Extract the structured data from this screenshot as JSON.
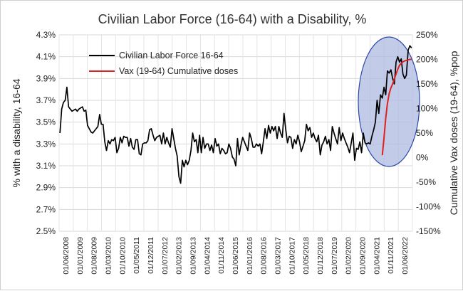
{
  "chart_data": {
    "type": "line",
    "title": "Civilian Labor Force (16-64) with a Disability, %",
    "ylabel_left": "% with a disability, 16-64",
    "ylabel_right": "Cumulative Vax doses (19-64), %pop",
    "y_left": {
      "min": 2.5,
      "max": 4.3,
      "step": 0.2,
      "ticks": [
        "4.3%",
        "4.1%",
        "3.9%",
        "3.7%",
        "3.5%",
        "3.3%",
        "3.1%",
        "2.9%",
        "2.7%",
        "2.5%"
      ]
    },
    "y_right": {
      "min": -150,
      "max": 250,
      "step": 50,
      "ticks": [
        "250%",
        "200%",
        "150%",
        "100%",
        "50%",
        "0%",
        "-50%",
        "-100%",
        "-150%"
      ]
    },
    "x_ticks": [
      "01/06/2008",
      "01/01/2009",
      "01/08/2009",
      "01/03/2010",
      "01/10/2010",
      "01/05/2011",
      "01/12/2011",
      "01/07/2012",
      "01/02/2013",
      "01/09/2013",
      "01/04/2014",
      "01/11/2014",
      "01/06/2015",
      "01/01/2016",
      "01/08/2016",
      "01/03/2017",
      "01/10/2017",
      "01/05/2018",
      "01/12/2018",
      "01/07/2019",
      "01/02/2020",
      "01/09/2020",
      "01/04/2021",
      "01/11/2021",
      "01/06/2022"
    ],
    "legend": [
      "Civilian Labor Force 16-64",
      "Vax (19-64) Cumulative doses"
    ],
    "colors": {
      "labor": "#000000",
      "vax": "#e02020",
      "ellipse_fill": "#aab8e0",
      "ellipse_stroke": "#2c49a8"
    },
    "series": [
      {
        "name": "Civilian Labor Force 16-64",
        "axis": "left",
        "start_month": "2008-06",
        "values": [
          3.4,
          3.62,
          3.68,
          3.7,
          3.82,
          3.64,
          3.62,
          3.6,
          3.61,
          3.62,
          3.6,
          3.62,
          3.63,
          3.64,
          3.6,
          3.61,
          3.47,
          3.44,
          3.41,
          3.4,
          3.42,
          3.44,
          3.46,
          3.57,
          3.48,
          3.48,
          3.32,
          3.24,
          3.33,
          3.3,
          3.34,
          3.33,
          3.36,
          3.22,
          3.26,
          3.36,
          3.31,
          3.37,
          3.36,
          3.36,
          3.28,
          3.35,
          3.27,
          3.25,
          3.34,
          3.34,
          3.21,
          3.2,
          3.3,
          3.31,
          3.31,
          3.33,
          3.43,
          3.44,
          3.38,
          3.33,
          3.36,
          3.37,
          3.38,
          3.3,
          3.4,
          3.3,
          3.36,
          3.31,
          3.27,
          3.44,
          3.35,
          3.26,
          3.19,
          3.0,
          2.94,
          3.15,
          3.09,
          3.15,
          3.11,
          3.15,
          3.24,
          3.4,
          3.32,
          3.34,
          3.22,
          3.38,
          3.22,
          3.36,
          3.26,
          3.3,
          3.3,
          3.24,
          3.29,
          3.22,
          3.35,
          3.28,
          3.3,
          3.21,
          3.26,
          3.24,
          3.21,
          3.22,
          3.3,
          3.26,
          3.18,
          3.16,
          3.1,
          3.35,
          3.2,
          3.29,
          3.36,
          3.32,
          3.28,
          3.24,
          3.4,
          3.35,
          3.27,
          3.27,
          3.3,
          3.28,
          3.3,
          3.21,
          3.32,
          3.44,
          3.35,
          3.47,
          3.4,
          3.46,
          3.42,
          3.46,
          3.35,
          3.46,
          3.4,
          3.36,
          3.58,
          3.43,
          3.31,
          3.37,
          3.36,
          3.26,
          3.34,
          3.3,
          3.38,
          3.32,
          3.23,
          3.28,
          3.33,
          3.48,
          3.42,
          3.45,
          3.36,
          3.4,
          3.35,
          3.32,
          3.38,
          3.2,
          3.29,
          3.32,
          3.37,
          3.3,
          3.34,
          3.24,
          3.46,
          3.4,
          3.35,
          3.3,
          3.45,
          3.33,
          3.4,
          3.35,
          3.31,
          3.27,
          3.22,
          3.31,
          3.4,
          3.15,
          3.26,
          3.25,
          3.32,
          3.22,
          3.4,
          3.31,
          3.3,
          3.31,
          3.3,
          3.37,
          3.43,
          3.5,
          3.7,
          3.58,
          3.75,
          3.72,
          3.82,
          3.75,
          3.97,
          3.95,
          3.98,
          3.9,
          3.85,
          4.05,
          4.1,
          4.05,
          4.08,
          3.94,
          3.9,
          3.93,
          4.16,
          4.2,
          4.18
        ]
      },
      {
        "name": "Vax (19-64) Cumulative doses",
        "axis": "right",
        "start_month": "2021-01",
        "values": [
          5,
          40,
          80,
          110,
          130,
          142,
          150,
          160,
          170,
          180,
          188,
          192,
          195,
          197,
          198,
          199,
          200,
          200
        ]
      }
    ]
  }
}
